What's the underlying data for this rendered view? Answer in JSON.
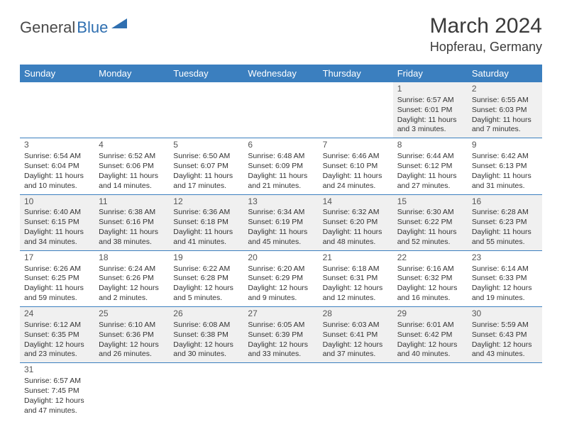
{
  "logo": {
    "text_a": "General",
    "text_b": "Blue"
  },
  "title": "March 2024",
  "location": "Hopferau, Germany",
  "colors": {
    "header_bg": "#3b7fbf",
    "header_text": "#ffffff",
    "row_alt": "#f0f0f0",
    "row_bg": "#ffffff",
    "border": "#3b7fbf",
    "logo_gray": "#4a4a4a",
    "logo_blue": "#2f6fb0"
  },
  "day_headers": [
    "Sunday",
    "Monday",
    "Tuesday",
    "Wednesday",
    "Thursday",
    "Friday",
    "Saturday"
  ],
  "weeks": [
    [
      null,
      null,
      null,
      null,
      null,
      {
        "n": "1",
        "sr": "Sunrise: 6:57 AM",
        "ss": "Sunset: 6:01 PM",
        "dl1": "Daylight: 11 hours",
        "dl2": "and 3 minutes."
      },
      {
        "n": "2",
        "sr": "Sunrise: 6:55 AM",
        "ss": "Sunset: 6:03 PM",
        "dl1": "Daylight: 11 hours",
        "dl2": "and 7 minutes."
      }
    ],
    [
      {
        "n": "3",
        "sr": "Sunrise: 6:54 AM",
        "ss": "Sunset: 6:04 PM",
        "dl1": "Daylight: 11 hours",
        "dl2": "and 10 minutes."
      },
      {
        "n": "4",
        "sr": "Sunrise: 6:52 AM",
        "ss": "Sunset: 6:06 PM",
        "dl1": "Daylight: 11 hours",
        "dl2": "and 14 minutes."
      },
      {
        "n": "5",
        "sr": "Sunrise: 6:50 AM",
        "ss": "Sunset: 6:07 PM",
        "dl1": "Daylight: 11 hours",
        "dl2": "and 17 minutes."
      },
      {
        "n": "6",
        "sr": "Sunrise: 6:48 AM",
        "ss": "Sunset: 6:09 PM",
        "dl1": "Daylight: 11 hours",
        "dl2": "and 21 minutes."
      },
      {
        "n": "7",
        "sr": "Sunrise: 6:46 AM",
        "ss": "Sunset: 6:10 PM",
        "dl1": "Daylight: 11 hours",
        "dl2": "and 24 minutes."
      },
      {
        "n": "8",
        "sr": "Sunrise: 6:44 AM",
        "ss": "Sunset: 6:12 PM",
        "dl1": "Daylight: 11 hours",
        "dl2": "and 27 minutes."
      },
      {
        "n": "9",
        "sr": "Sunrise: 6:42 AM",
        "ss": "Sunset: 6:13 PM",
        "dl1": "Daylight: 11 hours",
        "dl2": "and 31 minutes."
      }
    ],
    [
      {
        "n": "10",
        "sr": "Sunrise: 6:40 AM",
        "ss": "Sunset: 6:15 PM",
        "dl1": "Daylight: 11 hours",
        "dl2": "and 34 minutes."
      },
      {
        "n": "11",
        "sr": "Sunrise: 6:38 AM",
        "ss": "Sunset: 6:16 PM",
        "dl1": "Daylight: 11 hours",
        "dl2": "and 38 minutes."
      },
      {
        "n": "12",
        "sr": "Sunrise: 6:36 AM",
        "ss": "Sunset: 6:18 PM",
        "dl1": "Daylight: 11 hours",
        "dl2": "and 41 minutes."
      },
      {
        "n": "13",
        "sr": "Sunrise: 6:34 AM",
        "ss": "Sunset: 6:19 PM",
        "dl1": "Daylight: 11 hours",
        "dl2": "and 45 minutes."
      },
      {
        "n": "14",
        "sr": "Sunrise: 6:32 AM",
        "ss": "Sunset: 6:20 PM",
        "dl1": "Daylight: 11 hours",
        "dl2": "and 48 minutes."
      },
      {
        "n": "15",
        "sr": "Sunrise: 6:30 AM",
        "ss": "Sunset: 6:22 PM",
        "dl1": "Daylight: 11 hours",
        "dl2": "and 52 minutes."
      },
      {
        "n": "16",
        "sr": "Sunrise: 6:28 AM",
        "ss": "Sunset: 6:23 PM",
        "dl1": "Daylight: 11 hours",
        "dl2": "and 55 minutes."
      }
    ],
    [
      {
        "n": "17",
        "sr": "Sunrise: 6:26 AM",
        "ss": "Sunset: 6:25 PM",
        "dl1": "Daylight: 11 hours",
        "dl2": "and 59 minutes."
      },
      {
        "n": "18",
        "sr": "Sunrise: 6:24 AM",
        "ss": "Sunset: 6:26 PM",
        "dl1": "Daylight: 12 hours",
        "dl2": "and 2 minutes."
      },
      {
        "n": "19",
        "sr": "Sunrise: 6:22 AM",
        "ss": "Sunset: 6:28 PM",
        "dl1": "Daylight: 12 hours",
        "dl2": "and 5 minutes."
      },
      {
        "n": "20",
        "sr": "Sunrise: 6:20 AM",
        "ss": "Sunset: 6:29 PM",
        "dl1": "Daylight: 12 hours",
        "dl2": "and 9 minutes."
      },
      {
        "n": "21",
        "sr": "Sunrise: 6:18 AM",
        "ss": "Sunset: 6:31 PM",
        "dl1": "Daylight: 12 hours",
        "dl2": "and 12 minutes."
      },
      {
        "n": "22",
        "sr": "Sunrise: 6:16 AM",
        "ss": "Sunset: 6:32 PM",
        "dl1": "Daylight: 12 hours",
        "dl2": "and 16 minutes."
      },
      {
        "n": "23",
        "sr": "Sunrise: 6:14 AM",
        "ss": "Sunset: 6:33 PM",
        "dl1": "Daylight: 12 hours",
        "dl2": "and 19 minutes."
      }
    ],
    [
      {
        "n": "24",
        "sr": "Sunrise: 6:12 AM",
        "ss": "Sunset: 6:35 PM",
        "dl1": "Daylight: 12 hours",
        "dl2": "and 23 minutes."
      },
      {
        "n": "25",
        "sr": "Sunrise: 6:10 AM",
        "ss": "Sunset: 6:36 PM",
        "dl1": "Daylight: 12 hours",
        "dl2": "and 26 minutes."
      },
      {
        "n": "26",
        "sr": "Sunrise: 6:08 AM",
        "ss": "Sunset: 6:38 PM",
        "dl1": "Daylight: 12 hours",
        "dl2": "and 30 minutes."
      },
      {
        "n": "27",
        "sr": "Sunrise: 6:05 AM",
        "ss": "Sunset: 6:39 PM",
        "dl1": "Daylight: 12 hours",
        "dl2": "and 33 minutes."
      },
      {
        "n": "28",
        "sr": "Sunrise: 6:03 AM",
        "ss": "Sunset: 6:41 PM",
        "dl1": "Daylight: 12 hours",
        "dl2": "and 37 minutes."
      },
      {
        "n": "29",
        "sr": "Sunrise: 6:01 AM",
        "ss": "Sunset: 6:42 PM",
        "dl1": "Daylight: 12 hours",
        "dl2": "and 40 minutes."
      },
      {
        "n": "30",
        "sr": "Sunrise: 5:59 AM",
        "ss": "Sunset: 6:43 PM",
        "dl1": "Daylight: 12 hours",
        "dl2": "and 43 minutes."
      }
    ],
    [
      {
        "n": "31",
        "sr": "Sunrise: 6:57 AM",
        "ss": "Sunset: 7:45 PM",
        "dl1": "Daylight: 12 hours",
        "dl2": "and 47 minutes."
      },
      null,
      null,
      null,
      null,
      null,
      null
    ]
  ]
}
